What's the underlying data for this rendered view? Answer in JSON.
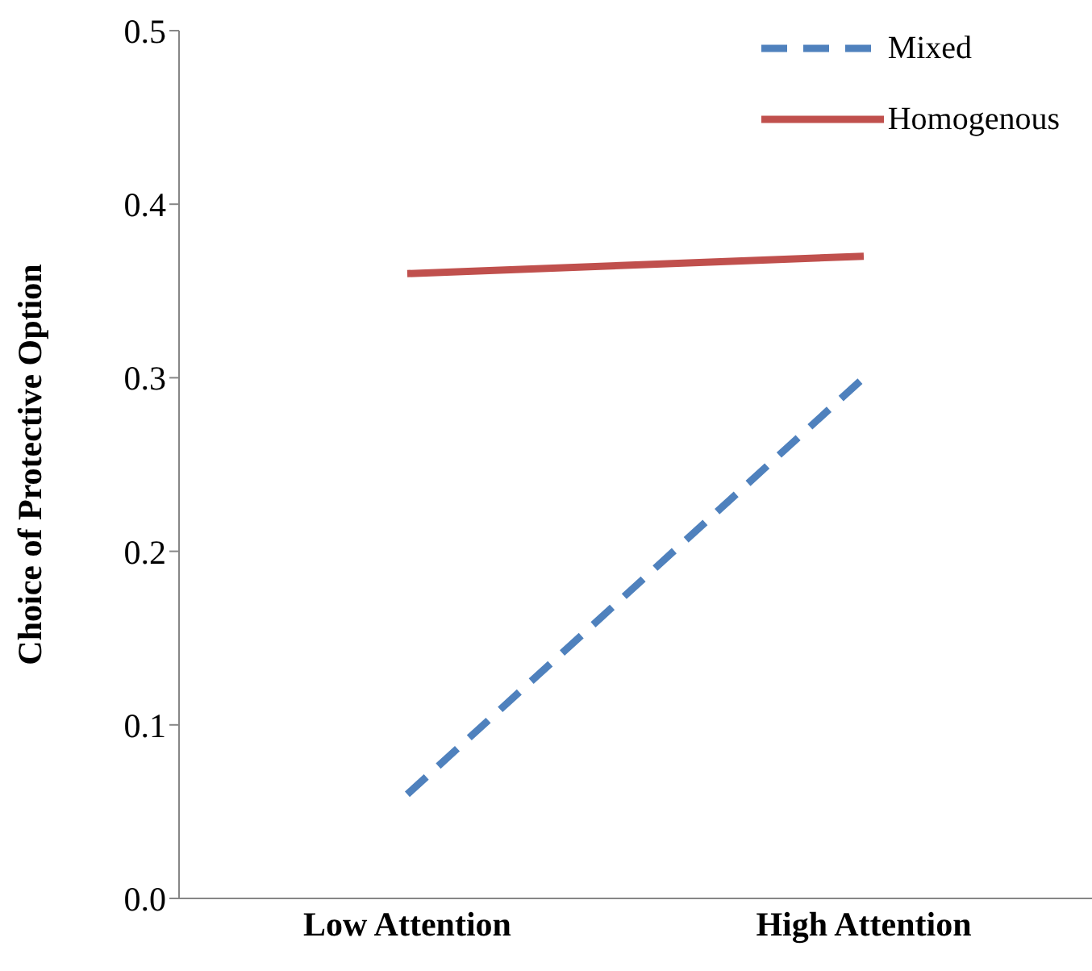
{
  "chart_data": {
    "type": "line",
    "ylabel": "Choice of Protective Option",
    "categories": [
      "Low Attention",
      "High Attention"
    ],
    "series": [
      {
        "name": "Mixed",
        "color": "#4f81bd",
        "values": [
          0.06,
          0.3
        ],
        "line_style": "dashed"
      },
      {
        "name": "Homogenous",
        "color": "#c0504d",
        "values": [
          0.36,
          0.37
        ],
        "line_style": "solid"
      }
    ],
    "ylim": [
      0,
      0.5
    ],
    "yticks": [
      {
        "value": 0,
        "label": "0.0"
      },
      {
        "value": 0.1,
        "label": "0.1"
      },
      {
        "value": 0.2,
        "label": "0.2"
      },
      {
        "value": 0.3,
        "label": "0.3"
      },
      {
        "value": 0.4,
        "label": "0.4"
      },
      {
        "value": 0.5,
        "label": "0.5"
      }
    ],
    "grid": false,
    "legend": "top right",
    "marker": "none"
  }
}
